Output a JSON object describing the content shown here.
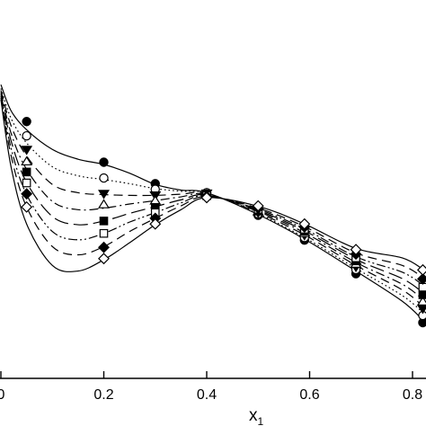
{
  "chart_data": {
    "type": "line",
    "title": "",
    "xlabel": "x",
    "xlabel_subscript": "1",
    "ylabel": "",
    "xlim": [
      0.0,
      0.82
    ],
    "ylim": [
      0.0,
      1.0
    ],
    "x_ticks": [
      0.0,
      0.2,
      0.4,
      0.6,
      0.8
    ],
    "x_tick_labels": [
      "0",
      "0.2",
      "0.4",
      "0.6",
      "0.8"
    ],
    "grid": false,
    "legend": "none",
    "series": [
      {
        "marker": "filled-circle",
        "linestyle": "solid",
        "x": [
          0.05,
          0.2,
          0.3,
          0.4,
          0.5,
          0.59,
          0.69,
          0.82
        ],
        "y": [
          0.682,
          0.574,
          0.517,
          0.493,
          0.433,
          0.367,
          0.278,
          0.148
        ],
        "fit": [
          [
            0.0,
            0.78
          ],
          [
            0.02,
            0.71
          ],
          [
            0.05,
            0.66
          ],
          [
            0.1,
            0.608
          ],
          [
            0.15,
            0.582
          ],
          [
            0.2,
            0.568
          ],
          [
            0.25,
            0.545
          ],
          [
            0.3,
            0.515
          ],
          [
            0.35,
            0.5
          ],
          [
            0.4,
            0.493
          ],
          [
            0.5,
            0.435
          ],
          [
            0.59,
            0.37
          ],
          [
            0.69,
            0.285
          ],
          [
            0.78,
            0.205
          ],
          [
            0.82,
            0.155
          ]
        ]
      },
      {
        "marker": "open-circle",
        "linestyle": "dotted",
        "x": [
          0.05,
          0.2,
          0.3,
          0.4,
          0.5,
          0.59,
          0.69,
          0.82
        ],
        "y": [
          0.644,
          0.532,
          0.502,
          0.493,
          0.437,
          0.374,
          0.289,
          0.167
        ],
        "fit": [
          [
            0.0,
            0.77
          ],
          [
            0.02,
            0.69
          ],
          [
            0.05,
            0.625
          ],
          [
            0.1,
            0.562
          ],
          [
            0.15,
            0.538
          ],
          [
            0.2,
            0.528
          ],
          [
            0.25,
            0.517
          ],
          [
            0.3,
            0.504
          ],
          [
            0.35,
            0.497
          ],
          [
            0.4,
            0.492
          ],
          [
            0.5,
            0.437
          ],
          [
            0.59,
            0.374
          ],
          [
            0.69,
            0.292
          ],
          [
            0.78,
            0.22
          ],
          [
            0.82,
            0.175
          ]
        ]
      },
      {
        "marker": "filled-down-triangle",
        "linestyle": "dashed",
        "x": [
          0.05,
          0.2,
          0.3,
          0.4,
          0.5,
          0.59,
          0.69,
          0.82
        ],
        "y": [
          0.607,
          0.49,
          0.486,
          0.491,
          0.44,
          0.38,
          0.296,
          0.185
        ],
        "fit": [
          [
            0.0,
            0.765
          ],
          [
            0.02,
            0.67
          ],
          [
            0.05,
            0.59
          ],
          [
            0.1,
            0.515
          ],
          [
            0.15,
            0.493
          ],
          [
            0.2,
            0.488
          ],
          [
            0.25,
            0.486
          ],
          [
            0.3,
            0.486
          ],
          [
            0.35,
            0.489
          ],
          [
            0.4,
            0.491
          ],
          [
            0.5,
            0.44
          ],
          [
            0.59,
            0.381
          ],
          [
            0.69,
            0.3
          ],
          [
            0.78,
            0.235
          ],
          [
            0.82,
            0.192
          ]
        ]
      },
      {
        "marker": "open-triangle",
        "linestyle": "dash-dot",
        "x": [
          0.05,
          0.2,
          0.3,
          0.4,
          0.5,
          0.59,
          0.69,
          0.82
        ],
        "y": [
          0.576,
          0.462,
          0.472,
          0.489,
          0.443,
          0.386,
          0.304,
          0.204
        ],
        "fit": [
          [
            0.0,
            0.76
          ],
          [
            0.02,
            0.65
          ],
          [
            0.05,
            0.555
          ],
          [
            0.1,
            0.47
          ],
          [
            0.15,
            0.448
          ],
          [
            0.2,
            0.452
          ],
          [
            0.25,
            0.463
          ],
          [
            0.3,
            0.472
          ],
          [
            0.35,
            0.482
          ],
          [
            0.4,
            0.489
          ],
          [
            0.5,
            0.443
          ],
          [
            0.59,
            0.387
          ],
          [
            0.69,
            0.308
          ],
          [
            0.78,
            0.25
          ],
          [
            0.82,
            0.21
          ]
        ]
      },
      {
        "marker": "filled-square",
        "linestyle": "long-dash",
        "x": [
          0.05,
          0.2,
          0.3,
          0.4,
          0.5,
          0.59,
          0.69,
          0.82
        ],
        "y": [
          0.548,
          0.418,
          0.454,
          0.487,
          0.446,
          0.391,
          0.312,
          0.222
        ],
        "fit": [
          [
            0.0,
            0.755
          ],
          [
            0.02,
            0.63
          ],
          [
            0.05,
            0.52
          ],
          [
            0.1,
            0.43
          ],
          [
            0.15,
            0.408
          ],
          [
            0.2,
            0.418
          ],
          [
            0.25,
            0.438
          ],
          [
            0.3,
            0.456
          ],
          [
            0.35,
            0.474
          ],
          [
            0.4,
            0.487
          ],
          [
            0.5,
            0.446
          ],
          [
            0.59,
            0.392
          ],
          [
            0.69,
            0.316
          ],
          [
            0.78,
            0.265
          ],
          [
            0.82,
            0.228
          ]
        ]
      },
      {
        "marker": "open-square",
        "linestyle": "dash-dot-dot",
        "x": [
          0.05,
          0.2,
          0.3,
          0.4,
          0.5,
          0.59,
          0.69,
          0.82
        ],
        "y": [
          0.519,
          0.385,
          0.44,
          0.485,
          0.449,
          0.396,
          0.32,
          0.242
        ],
        "fit": [
          [
            0.0,
            0.75
          ],
          [
            0.02,
            0.61
          ],
          [
            0.05,
            0.488
          ],
          [
            0.1,
            0.39
          ],
          [
            0.15,
            0.368
          ],
          [
            0.2,
            0.385
          ],
          [
            0.25,
            0.415
          ],
          [
            0.3,
            0.44
          ],
          [
            0.35,
            0.466
          ],
          [
            0.4,
            0.485
          ],
          [
            0.5,
            0.449
          ],
          [
            0.59,
            0.397
          ],
          [
            0.69,
            0.323
          ],
          [
            0.78,
            0.282
          ],
          [
            0.82,
            0.248
          ]
        ]
      },
      {
        "marker": "filled-diamond",
        "linestyle": "dashed",
        "x": [
          0.05,
          0.2,
          0.3,
          0.4,
          0.5,
          0.59,
          0.69,
          0.82
        ],
        "y": [
          0.49,
          0.348,
          0.425,
          0.483,
          0.452,
          0.402,
          0.33,
          0.264
        ],
        "fit": [
          [
            0.0,
            0.745
          ],
          [
            0.02,
            0.59
          ],
          [
            0.05,
            0.455
          ],
          [
            0.1,
            0.35
          ],
          [
            0.15,
            0.328
          ],
          [
            0.2,
            0.35
          ],
          [
            0.25,
            0.39
          ],
          [
            0.3,
            0.425
          ],
          [
            0.35,
            0.458
          ],
          [
            0.4,
            0.483
          ],
          [
            0.5,
            0.452
          ],
          [
            0.59,
            0.403
          ],
          [
            0.69,
            0.333
          ],
          [
            0.78,
            0.3
          ],
          [
            0.82,
            0.268
          ]
        ]
      },
      {
        "marker": "open-diamond",
        "linestyle": "solid",
        "x": [
          0.05,
          0.2,
          0.3,
          0.4,
          0.5,
          0.59,
          0.69,
          0.82
        ],
        "y": [
          0.455,
          0.318,
          0.41,
          0.48,
          0.458,
          0.41,
          0.342,
          0.288
        ],
        "fit": [
          [
            0.0,
            0.74
          ],
          [
            0.02,
            0.56
          ],
          [
            0.05,
            0.41
          ],
          [
            0.1,
            0.3
          ],
          [
            0.15,
            0.285
          ],
          [
            0.2,
            0.315
          ],
          [
            0.25,
            0.36
          ],
          [
            0.3,
            0.408
          ],
          [
            0.35,
            0.448
          ],
          [
            0.4,
            0.48
          ],
          [
            0.5,
            0.457
          ],
          [
            0.59,
            0.41
          ],
          [
            0.69,
            0.345
          ],
          [
            0.78,
            0.32
          ],
          [
            0.82,
            0.29
          ]
        ]
      }
    ]
  }
}
